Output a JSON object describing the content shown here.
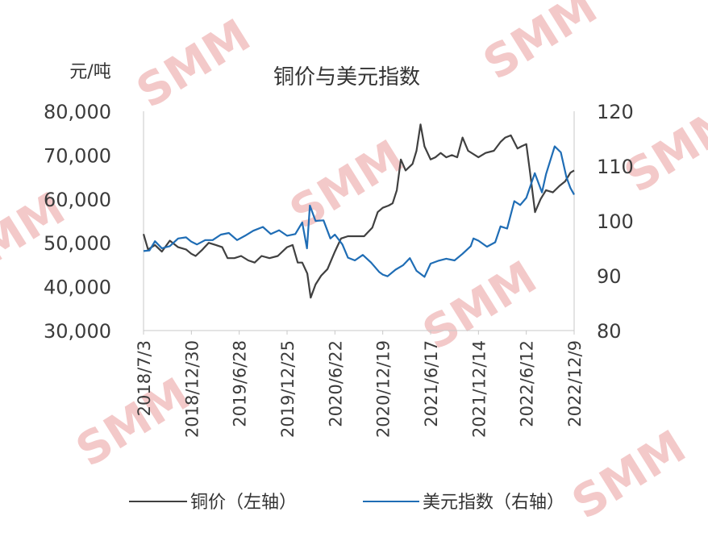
{
  "chart_data": {
    "type": "line",
    "title": "铜价与美元指数",
    "ylabel_left": "元/吨",
    "ylim_left": [
      30000,
      80000
    ],
    "yticks_left": [
      "30,000",
      "40,000",
      "50,000",
      "60,000",
      "70,000",
      "80,000"
    ],
    "ylim_right": [
      80,
      120
    ],
    "yticks_right": [
      "80",
      "90",
      "100",
      "110",
      "120"
    ],
    "x_ticks": [
      "2018/7/3",
      "2018/12/30",
      "2019/6/28",
      "2019/12/25",
      "2020/6/22",
      "2020/12/19",
      "2021/6/17",
      "2021/12/14",
      "2022/6/12",
      "2022/12/9"
    ],
    "x_range": [
      "2018-07-03",
      "2022-12-09"
    ],
    "grid": false,
    "legend_position": "bottom",
    "watermark": "SMM",
    "series": [
      {
        "name": "铜价（左轴）",
        "axis": "left",
        "color": "#404040",
        "points": [
          [
            "2018-07-03",
            52000
          ],
          [
            "2018-07-20",
            48500
          ],
          [
            "2018-08-15",
            49500
          ],
          [
            "2018-09-10",
            48000
          ],
          [
            "2018-10-10",
            50500
          ],
          [
            "2018-11-10",
            49000
          ],
          [
            "2018-12-10",
            48500
          ],
          [
            "2018-12-30",
            47500
          ],
          [
            "2019-01-15",
            47000
          ],
          [
            "2019-02-10",
            48500
          ],
          [
            "2019-03-05",
            50000
          ],
          [
            "2019-04-01",
            49500
          ],
          [
            "2019-04-25",
            49000
          ],
          [
            "2019-05-15",
            46500
          ],
          [
            "2019-06-10",
            46500
          ],
          [
            "2019-07-05",
            47000
          ],
          [
            "2019-08-01",
            46000
          ],
          [
            "2019-08-25",
            45500
          ],
          [
            "2019-09-20",
            47000
          ],
          [
            "2019-10-20",
            46500
          ],
          [
            "2019-11-20",
            47000
          ],
          [
            "2019-12-25",
            49000
          ],
          [
            "2020-01-15",
            49500
          ],
          [
            "2020-02-03",
            45500
          ],
          [
            "2020-02-20",
            45500
          ],
          [
            "2020-03-10",
            43000
          ],
          [
            "2020-03-23",
            37500
          ],
          [
            "2020-04-10",
            40500
          ],
          [
            "2020-05-01",
            42500
          ],
          [
            "2020-05-25",
            44000
          ],
          [
            "2020-06-22",
            48000
          ],
          [
            "2020-07-15",
            51000
          ],
          [
            "2020-08-10",
            51500
          ],
          [
            "2020-09-10",
            51500
          ],
          [
            "2020-10-10",
            51500
          ],
          [
            "2020-11-10",
            53500
          ],
          [
            "2020-11-30",
            57000
          ],
          [
            "2020-12-19",
            58000
          ],
          [
            "2021-01-10",
            58500
          ],
          [
            "2021-01-25",
            59000
          ],
          [
            "2021-02-10",
            62000
          ],
          [
            "2021-02-25",
            69000
          ],
          [
            "2021-03-15",
            66500
          ],
          [
            "2021-04-10",
            68000
          ],
          [
            "2021-04-25",
            71000
          ],
          [
            "2021-05-10",
            77000
          ],
          [
            "2021-05-25",
            72000
          ],
          [
            "2021-06-17",
            69000
          ],
          [
            "2021-07-05",
            69500
          ],
          [
            "2021-07-25",
            70500
          ],
          [
            "2021-08-15",
            69500
          ],
          [
            "2021-09-05",
            70000
          ],
          [
            "2021-09-25",
            69500
          ],
          [
            "2021-10-15",
            74000
          ],
          [
            "2021-11-05",
            71000
          ],
          [
            "2021-12-14",
            69500
          ],
          [
            "2022-01-10",
            70500
          ],
          [
            "2022-02-10",
            71000
          ],
          [
            "2022-03-07",
            73000
          ],
          [
            "2022-03-25",
            74000
          ],
          [
            "2022-04-15",
            74500
          ],
          [
            "2022-05-10",
            71500
          ],
          [
            "2022-05-25",
            72000
          ],
          [
            "2022-06-12",
            72500
          ],
          [
            "2022-06-25",
            66500
          ],
          [
            "2022-07-15",
            57000
          ],
          [
            "2022-08-05",
            60000
          ],
          [
            "2022-08-25",
            62000
          ],
          [
            "2022-09-20",
            61500
          ],
          [
            "2022-10-15",
            63000
          ],
          [
            "2022-11-05",
            64000
          ],
          [
            "2022-11-25",
            66000
          ],
          [
            "2022-12-09",
            66500
          ]
        ]
      },
      {
        "name": "美元指数（右轴）",
        "axis": "right",
        "color": "#1f6db5",
        "points": [
          [
            "2018-07-03",
            94.5
          ],
          [
            "2018-07-25",
            94.6
          ],
          [
            "2018-08-15",
            96.3
          ],
          [
            "2018-09-10",
            95.0
          ],
          [
            "2018-10-10",
            95.4
          ],
          [
            "2018-11-10",
            96.8
          ],
          [
            "2018-12-10",
            97.0
          ],
          [
            "2018-12-30",
            96.2
          ],
          [
            "2019-01-20",
            95.7
          ],
          [
            "2019-02-20",
            96.5
          ],
          [
            "2019-03-20",
            96.5
          ],
          [
            "2019-04-20",
            97.5
          ],
          [
            "2019-05-20",
            97.8
          ],
          [
            "2019-06-20",
            96.5
          ],
          [
            "2019-07-20",
            97.3
          ],
          [
            "2019-08-20",
            98.2
          ],
          [
            "2019-09-25",
            98.9
          ],
          [
            "2019-10-25",
            97.6
          ],
          [
            "2019-11-25",
            98.3
          ],
          [
            "2019-12-25",
            97.3
          ],
          [
            "2020-01-25",
            97.6
          ],
          [
            "2020-02-20",
            99.7
          ],
          [
            "2020-03-09",
            95.0
          ],
          [
            "2020-03-20",
            102.8
          ],
          [
            "2020-04-10",
            100.0
          ],
          [
            "2020-05-10",
            100.1
          ],
          [
            "2020-06-05",
            96.8
          ],
          [
            "2020-06-22",
            97.5
          ],
          [
            "2020-07-20",
            95.7
          ],
          [
            "2020-08-10",
            93.3
          ],
          [
            "2020-09-05",
            92.8
          ],
          [
            "2020-10-05",
            93.8
          ],
          [
            "2020-11-05",
            92.4
          ],
          [
            "2020-12-05",
            90.7
          ],
          [
            "2020-12-19",
            90.2
          ],
          [
            "2021-01-06",
            89.9
          ],
          [
            "2021-02-05",
            91.1
          ],
          [
            "2021-03-05",
            91.9
          ],
          [
            "2021-03-31",
            93.2
          ],
          [
            "2021-04-25",
            90.9
          ],
          [
            "2021-05-25",
            89.8
          ],
          [
            "2021-06-17",
            92.2
          ],
          [
            "2021-07-15",
            92.7
          ],
          [
            "2021-08-15",
            93.1
          ],
          [
            "2021-09-15",
            92.8
          ],
          [
            "2021-10-15",
            94.0
          ],
          [
            "2021-11-15",
            95.4
          ],
          [
            "2021-11-25",
            96.8
          ],
          [
            "2021-12-14",
            96.4
          ],
          [
            "2022-01-15",
            95.3
          ],
          [
            "2022-02-15",
            96.1
          ],
          [
            "2022-03-07",
            99.0
          ],
          [
            "2022-04-01",
            98.6
          ],
          [
            "2022-04-28",
            103.6
          ],
          [
            "2022-05-20",
            102.9
          ],
          [
            "2022-06-12",
            104.2
          ],
          [
            "2022-07-14",
            108.7
          ],
          [
            "2022-08-10",
            105.2
          ],
          [
            "2022-08-25",
            108.5
          ],
          [
            "2022-09-27",
            113.6
          ],
          [
            "2022-10-20",
            112.5
          ],
          [
            "2022-11-10",
            108.0
          ],
          [
            "2022-11-25",
            106.0
          ],
          [
            "2022-12-09",
            104.8
          ]
        ]
      }
    ]
  }
}
